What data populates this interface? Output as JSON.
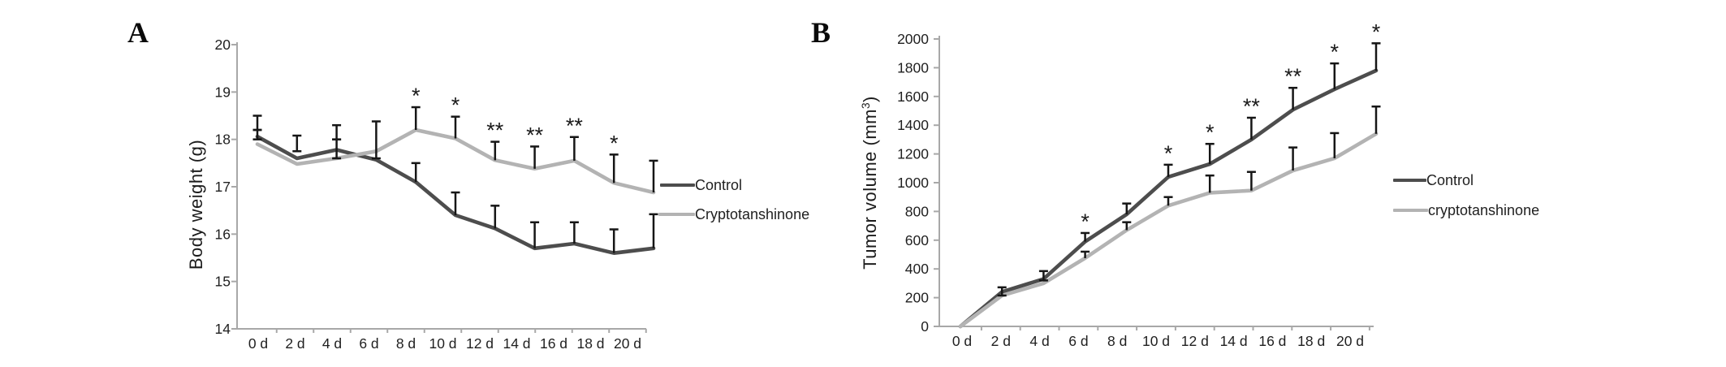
{
  "figure": {
    "background": "#ffffff",
    "text_color": "#1f1f1f",
    "axis_color": "#a8a8a8",
    "error_bar_color": "#161616",
    "panels": [
      {
        "panel_label": "A",
        "ylabel": "Body weight (g)",
        "legend": [
          {
            "label": "Control",
            "color": "#4d4d4d"
          },
          {
            "label": "Cryptotanshinone",
            "color": "#b3b3b3"
          }
        ]
      },
      {
        "panel_label": "B",
        "ylabel_main": "Tumor volume (mm",
        "ylabel_sup": "3",
        "ylabel_close": ")",
        "legend": [
          {
            "label": "Control",
            "color": "#4d4d4d"
          },
          {
            "label": "cryptotanshinone",
            "color": "#b3b3b3"
          }
        ]
      }
    ]
  },
  "chart_data": [
    {
      "type": "line",
      "panel": "A",
      "title": "",
      "xlabel": "",
      "ylabel": "Body weight (g)",
      "categories": [
        "0 d",
        "2 d",
        "4 d",
        "6 d",
        "8 d",
        "10 d",
        "12 d",
        "14 d",
        "16 d",
        "18 d",
        "20 d"
      ],
      "ylim": [
        14,
        20
      ],
      "yticks": [
        14,
        15,
        16,
        17,
        18,
        19,
        20
      ],
      "grid": false,
      "legend_position": "right",
      "series": [
        {
          "name": "Control",
          "color": "#4d4d4d",
          "values": [
            18.06,
            17.6,
            17.78,
            17.57,
            17.1,
            16.4,
            16.12,
            15.7,
            15.8,
            15.6,
            15.7
          ]
        },
        {
          "name": "Cryptotanshinone",
          "color": "#b3b3b3",
          "values": [
            17.9,
            17.48,
            17.6,
            17.75,
            18.2,
            18.02,
            17.56,
            17.38,
            17.55,
            17.08,
            16.88
          ]
        }
      ],
      "error_bars": [
        {
          "i": 0,
          "series": 0,
          "lo": 18.2,
          "hi": 18.5,
          "caps": "both"
        },
        {
          "i": 0,
          "series": 0,
          "lo": 18.0,
          "hi": 18.2,
          "caps": "both"
        },
        {
          "i": 1,
          "series": 0,
          "lo": 17.75,
          "hi": 18.08,
          "caps": "both"
        },
        {
          "i": 2,
          "series": 0,
          "lo": 18.0,
          "hi": 18.3,
          "caps": "both"
        },
        {
          "i": 2,
          "series": 0,
          "lo": 17.6,
          "hi": 18.0,
          "caps": "both"
        },
        {
          "i": 3,
          "series": 0,
          "lo": 17.6,
          "hi": 18.38,
          "caps": "both"
        },
        {
          "i": 4,
          "series": 0,
          "lo": 17.1,
          "hi": 17.5,
          "caps": "top"
        },
        {
          "i": 5,
          "series": 0,
          "lo": 16.4,
          "hi": 16.88,
          "caps": "top"
        },
        {
          "i": 6,
          "series": 0,
          "lo": 16.12,
          "hi": 16.6,
          "caps": "top"
        },
        {
          "i": 7,
          "series": 0,
          "lo": 15.7,
          "hi": 16.25,
          "caps": "top"
        },
        {
          "i": 8,
          "series": 0,
          "lo": 15.8,
          "hi": 16.25,
          "caps": "top"
        },
        {
          "i": 9,
          "series": 0,
          "lo": 15.6,
          "hi": 16.1,
          "caps": "top"
        },
        {
          "i": 10,
          "series": 0,
          "lo": 15.7,
          "hi": 16.42,
          "caps": "top"
        },
        {
          "i": 4,
          "series": 1,
          "lo": 18.2,
          "hi": 18.68,
          "caps": "top"
        },
        {
          "i": 5,
          "series": 1,
          "lo": 18.02,
          "hi": 18.48,
          "caps": "top"
        },
        {
          "i": 6,
          "series": 1,
          "lo": 17.56,
          "hi": 17.95,
          "caps": "top"
        },
        {
          "i": 7,
          "series": 1,
          "lo": 17.38,
          "hi": 17.85,
          "caps": "top"
        },
        {
          "i": 8,
          "series": 1,
          "lo": 17.55,
          "hi": 18.05,
          "caps": "top"
        },
        {
          "i": 9,
          "series": 1,
          "lo": 17.08,
          "hi": 17.68,
          "caps": "top"
        },
        {
          "i": 10,
          "series": 1,
          "lo": 16.88,
          "hi": 17.55,
          "caps": "top"
        }
      ],
      "annotations": [
        {
          "i": 4,
          "text": "*",
          "y": 18.68
        },
        {
          "i": 5,
          "text": "*",
          "y": 18.48
        },
        {
          "i": 6,
          "text": "**",
          "y": 17.95
        },
        {
          "i": 7,
          "text": "**",
          "y": 17.85
        },
        {
          "i": 8,
          "text": "**",
          "y": 18.05
        },
        {
          "i": 9,
          "text": "*",
          "y": 17.68
        }
      ]
    },
    {
      "type": "line",
      "panel": "B",
      "title": "",
      "xlabel": "",
      "ylabel": "Tumor volume (mm³)",
      "categories": [
        "0 d",
        "2 d",
        "4 d",
        "6 d",
        "8 d",
        "10 d",
        "12 d",
        "14 d",
        "16 d",
        "18 d",
        "20 d"
      ],
      "ylim": [
        0,
        2000
      ],
      "yticks": [
        0,
        200,
        400,
        600,
        800,
        1000,
        1200,
        1400,
        1600,
        1800,
        2000
      ],
      "grid": false,
      "legend_position": "right",
      "series": [
        {
          "name": "Control",
          "color": "#4d4d4d",
          "values": [
            0,
            240,
            330,
            590,
            780,
            1040,
            1130,
            1300,
            1508,
            1650,
            1780
          ]
        },
        {
          "name": "cryptotanshinone",
          "color": "#b3b3b3",
          "values": [
            0,
            215,
            300,
            475,
            670,
            840,
            930,
            945,
            1085,
            1170,
            1340
          ]
        }
      ],
      "error_bars": [
        {
          "i": 1,
          "series": 0,
          "lo": 215,
          "hi": 272,
          "caps": "both"
        },
        {
          "i": 2,
          "series": 0,
          "lo": 320,
          "hi": 385,
          "caps": "both"
        },
        {
          "i": 3,
          "series": 0,
          "lo": 590,
          "hi": 650,
          "caps": "top"
        },
        {
          "i": 4,
          "series": 0,
          "lo": 780,
          "hi": 855,
          "caps": "top"
        },
        {
          "i": 5,
          "series": 0,
          "lo": 1040,
          "hi": 1125,
          "caps": "top"
        },
        {
          "i": 6,
          "series": 0,
          "lo": 1130,
          "hi": 1270,
          "caps": "top"
        },
        {
          "i": 7,
          "series": 0,
          "lo": 1300,
          "hi": 1452,
          "caps": "top"
        },
        {
          "i": 8,
          "series": 0,
          "lo": 1508,
          "hi": 1660,
          "caps": "top"
        },
        {
          "i": 9,
          "series": 0,
          "lo": 1650,
          "hi": 1830,
          "caps": "top"
        },
        {
          "i": 10,
          "series": 0,
          "lo": 1780,
          "hi": 1970,
          "caps": "top"
        },
        {
          "i": 3,
          "series": 1,
          "lo": 475,
          "hi": 520,
          "caps": "top"
        },
        {
          "i": 4,
          "series": 1,
          "lo": 670,
          "hi": 725,
          "caps": "top"
        },
        {
          "i": 5,
          "series": 1,
          "lo": 840,
          "hi": 900,
          "caps": "top"
        },
        {
          "i": 6,
          "series": 1,
          "lo": 930,
          "hi": 1050,
          "caps": "top"
        },
        {
          "i": 7,
          "series": 1,
          "lo": 945,
          "hi": 1075,
          "caps": "top"
        },
        {
          "i": 8,
          "series": 1,
          "lo": 1085,
          "hi": 1245,
          "caps": "top"
        },
        {
          "i": 9,
          "series": 1,
          "lo": 1170,
          "hi": 1345,
          "caps": "top"
        },
        {
          "i": 10,
          "series": 1,
          "lo": 1340,
          "hi": 1530,
          "caps": "top"
        }
      ],
      "annotations": [
        {
          "i": 3,
          "text": "*",
          "y": 650
        },
        {
          "i": 5,
          "text": "*",
          "y": 1125
        },
        {
          "i": 6,
          "text": "*",
          "y": 1270
        },
        {
          "i": 7,
          "text": "**",
          "y": 1452
        },
        {
          "i": 8,
          "text": "**",
          "y": 1660
        },
        {
          "i": 9,
          "text": "*",
          "y": 1830
        },
        {
          "i": 10,
          "text": "*",
          "y": 1970
        }
      ]
    }
  ]
}
